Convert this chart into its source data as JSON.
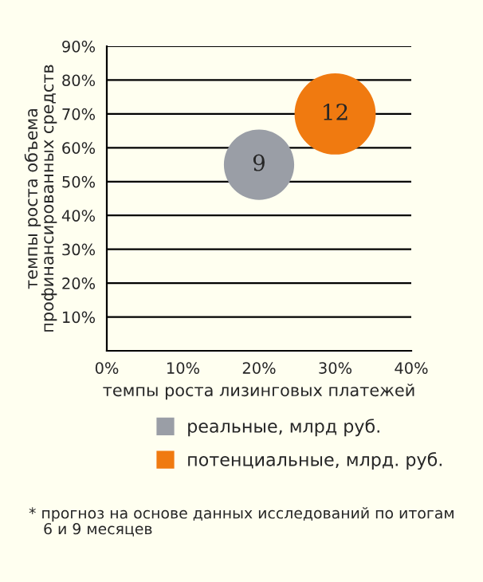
{
  "chart_data": {
    "type": "bubble",
    "xlabel": "темпы роста лизинговых платежей",
    "ylabel": "темпы роста объема\nпрофинансированных средств",
    "series": [
      {
        "name": "реальные, млрд руб.",
        "color": "#9a9ea6",
        "x": [
          20
        ],
        "values": [
          55
        ],
        "sizes": [
          9
        ],
        "value_labels": [
          "9"
        ]
      },
      {
        "name": "потенциальные, млрд. руб.",
        "color": "#f07a10",
        "x": [
          30
        ],
        "values": [
          70
        ],
        "sizes": [
          12
        ],
        "value_labels": [
          "12"
        ]
      }
    ],
    "xlim": [
      0,
      40
    ],
    "xticks": [
      {
        "value": 0,
        "label": "0%"
      },
      {
        "value": 10,
        "label": "10%"
      },
      {
        "value": 20,
        "label": "20%"
      },
      {
        "value": 30,
        "label": "30%"
      },
      {
        "value": 40,
        "label": "40%"
      }
    ],
    "ylim": [
      0,
      90
    ],
    "yticks": [
      {
        "value": 0,
        "label": null
      },
      {
        "value": 10,
        "label": "10%"
      },
      {
        "value": 20,
        "label": "20%"
      },
      {
        "value": 30,
        "label": "30%"
      },
      {
        "value": 40,
        "label": "40%"
      },
      {
        "value": 50,
        "label": "50%"
      },
      {
        "value": 60,
        "label": "60%"
      },
      {
        "value": 70,
        "label": "70%"
      },
      {
        "value": 80,
        "label": "80%"
      },
      {
        "value": 90,
        "label": "90%"
      }
    ],
    "grid": "y",
    "legend": "bottom",
    "annotations": [
      "* прогноз на основе данных исследований по итогам\n   6 и 9 месяцев"
    ]
  }
}
